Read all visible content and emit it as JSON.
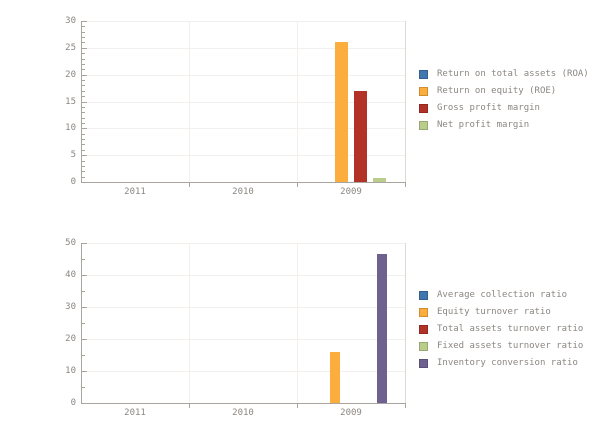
{
  "colors": {
    "background": "#ffffff",
    "axis": "#a9a49f",
    "grid": "#f2efec",
    "plot_border_right": "#ddd9d5",
    "tick_label": "#8b8681",
    "legend_text": "#8b8681",
    "blue": "#3f77ae",
    "orange": "#fbae3d",
    "red": "#b23227",
    "light_green": "#bacd8b",
    "purple": "#6e6190"
  },
  "chart_data": [
    {
      "type": "bar",
      "title": "",
      "xlabel": "",
      "ylabel": "",
      "categories": [
        "2011",
        "2010",
        "2009"
      ],
      "series": [
        {
          "name": "Return on total assets (ROA)",
          "color": "#3f77ae",
          "values": [
            0,
            0,
            0
          ]
        },
        {
          "name": "Return on equity (ROE)",
          "color": "#fbae3d",
          "values": [
            0,
            0,
            26
          ]
        },
        {
          "name": "Gross profit margin",
          "color": "#b23227",
          "values": [
            0,
            0,
            17
          ]
        },
        {
          "name": "Net profit margin",
          "color": "#bacd8b",
          "values": [
            0,
            0,
            0.8
          ]
        }
      ],
      "ylim": [
        0,
        30
      ],
      "yticks": [
        0,
        5,
        10,
        15,
        20,
        25,
        30
      ],
      "y_minor_step": 1,
      "grid": true,
      "legend_position": "right"
    },
    {
      "type": "bar",
      "title": "",
      "xlabel": "",
      "ylabel": "",
      "categories": [
        "2011",
        "2010",
        "2009"
      ],
      "series": [
        {
          "name": "Average collection ratio",
          "color": "#3f77ae",
          "values": [
            0,
            0,
            0
          ]
        },
        {
          "name": "Equity turnover ratio",
          "color": "#fbae3d",
          "values": [
            0,
            0,
            16
          ]
        },
        {
          "name": "Total assets turnover ratio",
          "color": "#b23227",
          "values": [
            0,
            0,
            0
          ]
        },
        {
          "name": "Fixed assets turnover ratio",
          "color": "#bacd8b",
          "values": [
            0,
            0,
            0
          ]
        },
        {
          "name": "Inventory conversion ratio",
          "color": "#6e6190",
          "values": [
            0,
            0,
            46.5
          ]
        }
      ],
      "ylim": [
        0,
        50
      ],
      "yticks": [
        0,
        10,
        20,
        30,
        40,
        50
      ],
      "y_minor_step": 5,
      "grid": true,
      "legend_position": "right"
    }
  ]
}
